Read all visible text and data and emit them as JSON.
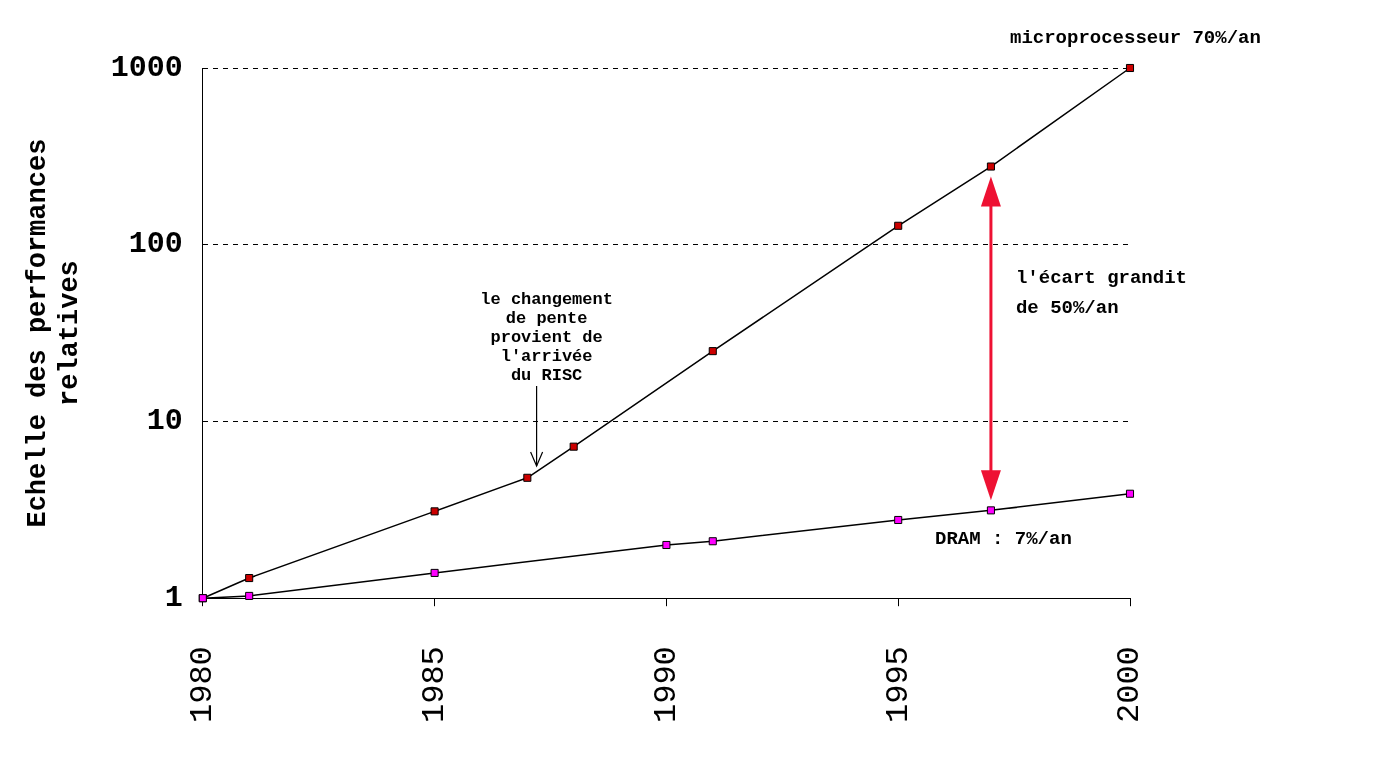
{
  "chart_data": {
    "type": "line",
    "ylabel": "Echelle des performances\nrelatives",
    "xlim": [
      1980,
      2000
    ],
    "xticks": [
      1980,
      1985,
      1990,
      1995,
      2000
    ],
    "ylim": [
      1,
      1000
    ],
    "yticks": [
      1,
      10,
      100,
      1000
    ],
    "log": "y",
    "grid": "y",
    "legend": false,
    "marker": "square",
    "line_style": "solid",
    "series": [
      {
        "name": "microprocesseur 70%/an",
        "color": "#cc0000",
        "x": [
          1980,
          1981,
          1985,
          1987,
          1988,
          1991,
          1995,
          1997,
          2000
        ],
        "values": [
          1,
          1.3,
          3.1,
          4.8,
          7.2,
          25,
          128,
          277,
          1000
        ]
      },
      {
        "name": "DRAM : 7%/an",
        "color": "#ff00ff",
        "x": [
          1980,
          1981,
          1985,
          1990,
          1991,
          1995,
          1997,
          2000
        ],
        "values": [
          1,
          1.03,
          1.39,
          2.0,
          2.1,
          2.77,
          3.14,
          3.9
        ]
      }
    ],
    "annotations": [
      {
        "text": "le changement\nde pente\nprovient de\nl'arrivée\ndu RISC",
        "x": 1987.2,
        "y": 5.6
      },
      "l'écart grandit\nde 50%/an"
    ]
  }
}
